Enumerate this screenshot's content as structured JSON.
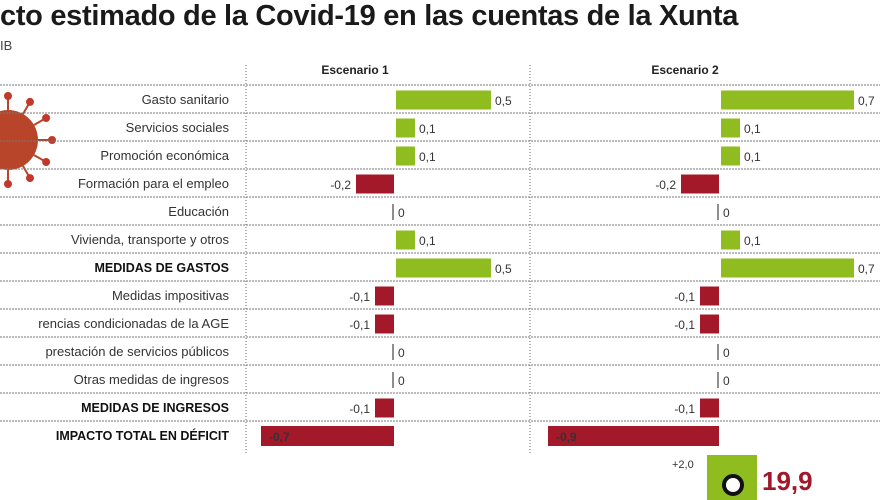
{
  "title": "cto estimado de la Covid-19 en las cuentas de la Xunta",
  "subtitle": "IB",
  "colors": {
    "positive": "#8fbc1f",
    "negative": "#a3192a"
  },
  "virus_icon": "coronavirus-icon",
  "chart_data": {
    "type": "bar",
    "orientation": "horizontal",
    "categories": [
      "Gasto sanitario",
      "Servicios sociales",
      "Promoción económica",
      "Formación para el empleo",
      "Educación",
      "Vivienda, transporte  y otros",
      "MEDIDAS DE GASTOS",
      "Medidas impositivas",
      "rencias condicionadas de la AGE",
      "prestación de servicios públicos",
      "Otras medidas de ingresos",
      "MEDIDAS DE INGRESOS",
      "IMPACTO TOTAL EN DÉFICIT"
    ],
    "bold_categories": [
      "MEDIDAS DE GASTOS",
      "MEDIDAS DE INGRESOS",
      "IMPACTO TOTAL EN DÉFICIT"
    ],
    "series": [
      {
        "name": "Escenario 1",
        "values": [
          0.5,
          0.1,
          0.1,
          -0.2,
          0,
          0.1,
          0.5,
          -0.1,
          -0.1,
          0,
          0,
          -0.1,
          -0.7
        ],
        "labels": [
          "0,5",
          "0,1",
          "0,1",
          "-0,2",
          "0",
          "0,1",
          "0,5",
          "-0,1",
          "-0,1",
          "0",
          "0",
          "-0,1",
          "-0,7"
        ]
      },
      {
        "name": "Escenario 2",
        "values": [
          0.7,
          0.1,
          0.1,
          -0.2,
          0,
          0.1,
          0.7,
          -0.1,
          -0.1,
          0,
          0,
          -0.1,
          -0.9
        ],
        "labels": [
          "0,7",
          "0,1",
          "0,1",
          "-0,2",
          "0",
          "0,1",
          "0,7",
          "-0,1",
          "-0,1",
          "0",
          "0",
          "-0,1",
          "-0,9"
        ]
      }
    ]
  },
  "footer": {
    "change": "+2,0",
    "value": "19,9",
    "icon": "person-icon"
  }
}
